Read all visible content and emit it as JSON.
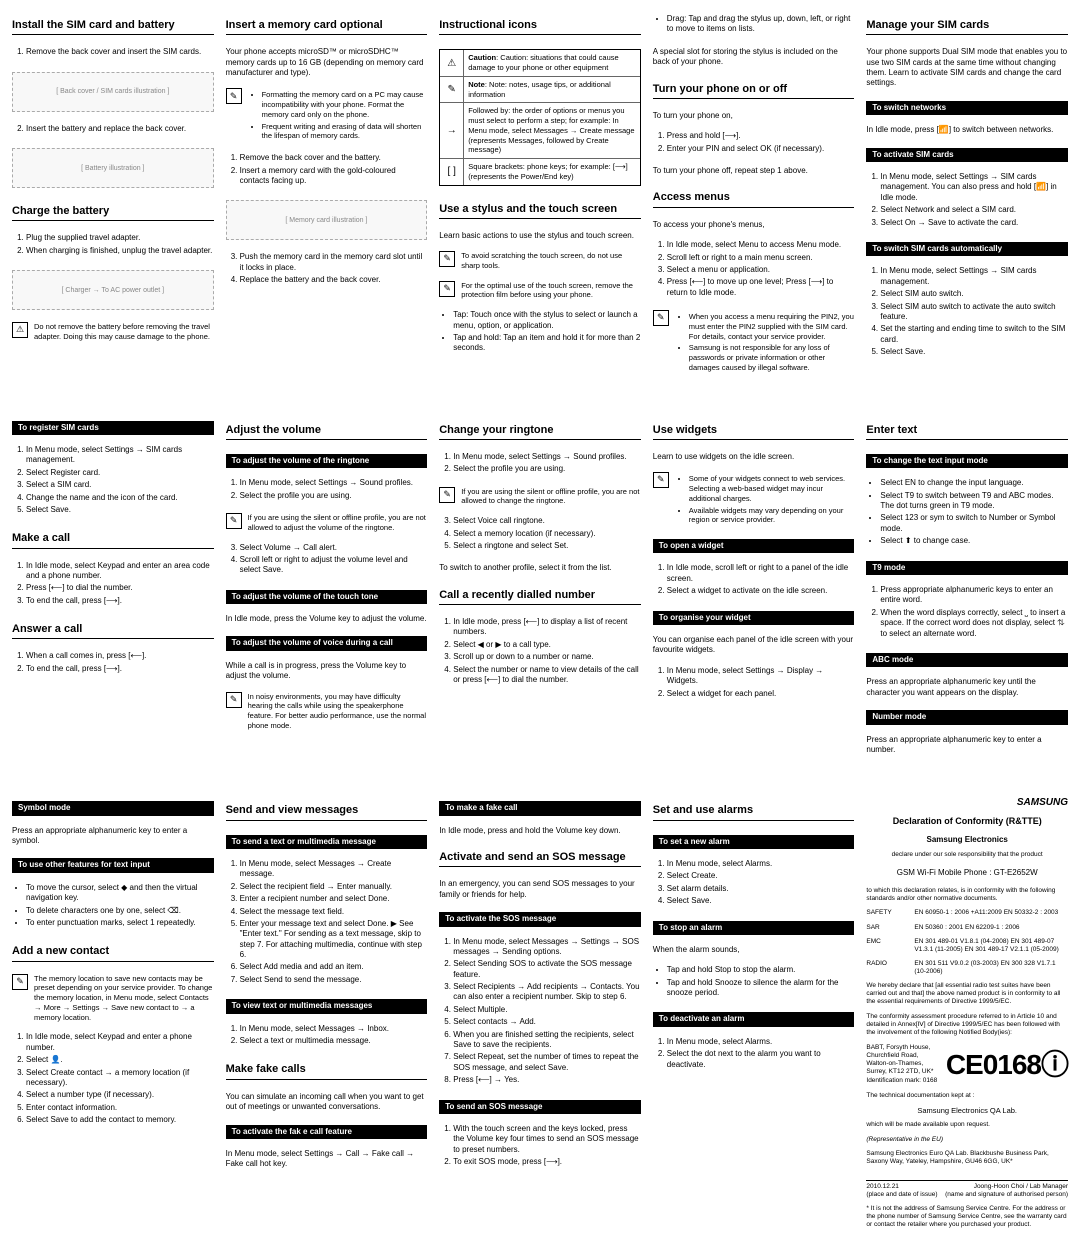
{
  "col1": {
    "install_sim": {
      "title": "Install the SIM card and battery",
      "step1": "Remove the back cover and insert the SIM cards.",
      "fig1": "[ Back cover / SIM cards illustration ]",
      "step2": "Insert the battery and replace the back cover.",
      "fig2": "[ Battery illustration ]"
    },
    "charge": {
      "title": "Charge the battery",
      "step1a": "Plug the supplied travel adapter.",
      "step1b": "When charging is finished, unplug the travel adapter.",
      "fig": "[ Charger → To AC power outlet ]",
      "warn": "Do not remove the battery before removing the travel adapter. Doing this may cause damage to the phone."
    },
    "register": {
      "label": "To register SIM cards",
      "s1": "In Menu mode, select Settings → SIM cards management.",
      "s2": "Select Register card.",
      "s3": "Select a SIM card.",
      "s4": "Change the name and the icon of the card.",
      "s5": "Select Save."
    },
    "make_call": {
      "title": "Make a call",
      "s1": "In Idle mode, select Keypad and enter an area code and a phone number.",
      "s2": "Press [⟵] to dial the number.",
      "s3": "To end the call, press [⟶]."
    },
    "answer_call": {
      "title": "Answer a call",
      "s1": "When a call comes in, press [⟵].",
      "s2": "To end the call, press [⟶]."
    },
    "symbol": {
      "label": "Symbol mode",
      "p": "Press an appropriate alphanumeric key to enter a symbol."
    },
    "other_features": {
      "label": "To use other features for text input",
      "b1": "To move the cursor, select ◆ and then the virtual navigation key.",
      "b2": "To delete characters one by one, select ⌫.",
      "b3": "To enter punctuation marks, select 1 repeatedly."
    },
    "add_contact": {
      "title": "Add a new contact",
      "note": "The memory location to save new contacts may be preset depending on your service provider. To change the memory location, in Menu mode, select Contacts → More → Settings → Save new contact to → a memory location.",
      "s1": "In Idle mode, select Keypad and enter a phone number.",
      "s2": "Select 👤.",
      "s3": "Select Create contact → a memory location (if necessary).",
      "s4": "Select a number type (if necessary).",
      "s5": "Enter contact information.",
      "s6": "Select Save to add the contact to memory."
    }
  },
  "col2": {
    "memory_card": {
      "title": "Insert a memory card optional",
      "intro": "Your phone accepts microSD™ or microSDHC™ memory cards up to 16 GB (depending on memory card manufacturer and type).",
      "b1": "Formatting the memory card on a PC may cause incompatibility with your phone. Format the memory card only on the phone.",
      "b2": "Frequent writing and erasing of data will shorten the lifespan of memory cards.",
      "s1": "Remove the back cover and the battery.",
      "s2": "Insert a memory card with the gold-coloured contacts facing up.",
      "fig": "[ Memory card illustration ]",
      "s3": "Push the memory card in the memory card slot until it locks in place.",
      "s4": "Replace the battery and the back cover."
    },
    "adjust_volume": {
      "title": "Adjust the volume",
      "label_ringtone": "To adjust the volume of the ringtone",
      "r1": "In Menu mode, select Settings → Sound profiles.",
      "r2": "Select the profile you are using.",
      "rnote": "If you are using the silent or offline profile, you are not allowed to adjust the volume of the ringtone.",
      "r3": "Select Volume → Call alert.",
      "r4": "Scroll left or right to adjust the volume level and select Save.",
      "label_touch": "To adjust the volume of the touch tone",
      "tp": "In Idle mode, press the Volume key to adjust the volume.",
      "label_voice": "To adjust the volume of voice during a call",
      "vp": "While a call is in progress, press the Volume key to adjust the volume.",
      "vnote": "In noisy environments, you may have difficulty hearing the calls while using the speakerphone feature. For better audio performance, use the normal phone mode."
    },
    "send_msg": {
      "title": "Send and view messages",
      "label_send": "To send a text or multimedia message",
      "s1": "In Menu mode, select Messages → Create message.",
      "s2": "Select the recipient field → Enter manually.",
      "s3": "Enter a recipient number and select Done.",
      "s4": "Select the message text field.",
      "s5": "Enter your message text and select Done.  ▶ See \"Enter text.\"  For sending as a text message, skip to step 7. For attaching multimedia, continue with step 6.",
      "s6": "Select Add media and add an item.",
      "s7": "Select Send to send the message.",
      "label_view": "To view text or multimedia messages",
      "v1": "In Menu mode, select Messages → Inbox.",
      "v2": "Select a text or multimedia message."
    },
    "fake_calls": {
      "title": "Make fake calls",
      "intro": "You can simulate an incoming call when you want to get out of meetings or unwanted conversations.",
      "label": "To activate the fak e call feature",
      "p": "In Menu mode, select Settings → Call → Fake call → Fake call hot key."
    }
  },
  "col3": {
    "icons": {
      "title": "Instructional icons",
      "caution": "Caution: situations that could cause damage to your phone or other equipment",
      "note": "Note: notes, usage tips, or additional information",
      "followed": "Followed by: the order of options or menus you must select to perform a step; for example: In Menu mode, select Messages → Create message (represents Messages, followed by Create message)",
      "brackets": "Square brackets: phone keys; for example: [⟶] (represents the Power/End key)"
    },
    "stylus": {
      "title": "Use a stylus and the touch screen",
      "intro": "Learn basic actions to use the stylus and touch screen.",
      "n1": "To avoid scratching the touch screen, do not use sharp tools.",
      "n2": "For the optimal use of the touch screen, remove the protection film before using your phone.",
      "b1": "Tap: Touch once with the stylus to select or launch a menu, option, or application.",
      "b2": "Tap and hold: Tap an item and hold it for more than 2 seconds."
    },
    "change_ringtone": {
      "title": "Change your ringtone",
      "s1": "In Menu mode, select Settings → Sound profiles.",
      "s2": "Select the profile you are using.",
      "note": "If you are using the silent or offline profile, you are not allowed to change the ringtone.",
      "s3": "Select Voice call ringtone.",
      "s4": "Select a memory location (if necessary).",
      "s5": "Select a ringtone and select Set.",
      "p": "To switch to another profile, select it from the list."
    },
    "recent": {
      "title": "Call a recently dialled number",
      "s1": "In Idle mode, press [⟵] to display a list of recent numbers.",
      "s2": "Select ◀ or ▶ to a call type.",
      "s3": "Scroll up or down to a number or name.",
      "s4": "Select the number or name to view details of the call or press [⟵] to dial the number."
    },
    "fake_call_make": {
      "label": "To make a fake call",
      "p": "In Idle mode, press and hold the Volume key down."
    },
    "sos": {
      "title": "Activate and send an SOS message",
      "intro": "In an emergency, you can send SOS messages to your family or friends for help.",
      "label_activate": "To activate the SOS message",
      "a1": "In Menu mode, select Messages → Settings → SOS messages → Sending options.",
      "a2": "Select Sending SOS to activate the SOS message feature.",
      "a3": "Select Recipients → Add recipients → Contacts. You can also enter a recipient number. Skip to step 6.",
      "a4": "Select Multiple.",
      "a5": "Select contacts → Add.",
      "a6": "When you are finished setting the recipients, select Save to save the recipients.",
      "a7": "Select Repeat, set the number of times to repeat the SOS message, and select Save.",
      "a8": "Press [⟵] → Yes.",
      "label_send": "To send an SOS message",
      "s1": "With the touch screen and the keys locked, press the Volume key four times to send an SOS message to preset numbers.",
      "s2": "To exit SOS mode, press [⟶]."
    }
  },
  "col4": {
    "drag": "Drag: Tap and drag the stylus up, down, left, or right to move to items on lists.",
    "slot": "A special slot for storing the stylus is included on the back of your phone.",
    "turn_on": {
      "title": "Turn your phone on or off",
      "intro": "To turn your phone on,",
      "s1": "Press and hold [⟶].",
      "s2": "Enter your PIN and select OK (if necessary).",
      "off": "To turn your phone off, repeat step 1 above."
    },
    "access": {
      "title": "Access menus",
      "intro": "To access your phone's menus,",
      "s1": "In Idle mode, select Menu to access Menu mode.",
      "s2": "Scroll left or right to a main menu screen.",
      "s3": "Select a menu or application.",
      "s4": "Press [⟵] to move up one level; Press [⟶] to return to Idle mode.",
      "n1": "When you access a menu requiring the PIN2, you must enter the PIN2 supplied with the SIM card. For details, contact your service provider.",
      "n2": "Samsung is not responsible for any loss of passwords or private information or other damages caused by illegal software."
    },
    "widgets": {
      "title": "Use widgets",
      "intro": "Learn to use widgets on the idle screen.",
      "n1": "Some of your widgets connect to web services. Selecting a web-based widget may incur additional charges.",
      "n2": "Available widgets may vary depending on your region or service provider.",
      "label_open": "To open a widget",
      "o1": "In Idle mode, scroll left or right to a panel of the idle screen.",
      "o2": "Select a widget to activate on the idle screen.",
      "label_org": "To organise your widget",
      "orgp": "You can organise each panel of the idle screen with your favourite widgets.",
      "g1": "In Menu mode, select Settings → Display → Widgets.",
      "g2": "Select a widget for each panel."
    },
    "alarms": {
      "title": "Set and use alarms",
      "label_set": "To set a new alarm",
      "s1": "In Menu mode, select Alarms.",
      "s2": "Select Create.",
      "s3": "Set alarm details.",
      "s4": "Select Save.",
      "label_stop": "To stop an alarm",
      "stop_intro": "When the alarm sounds,",
      "t1": "Tap and hold Stop to stop the alarm.",
      "t2": "Tap and hold Snooze to silence the alarm for the snooze period.",
      "label_deact": "To deactivate an alarm",
      "d1": "In Menu mode, select Alarms.",
      "d2": "Select the dot next to the alarm you want to deactivate."
    }
  },
  "col5": {
    "manage_sim": {
      "title": "Manage your SIM cards",
      "intro": "Your phone supports Dual SIM mode that enables you to use two SIM cards at the same time without changing them. Learn to activate SIM cards and change the card settings.",
      "label_switch": "To switch networks",
      "swp": "In Idle mode, press [📶] to switch between networks.",
      "label_activate": "To activate SIM cards",
      "a1": "In Menu mode, select Settings → SIM cards management.  You can also press and hold [📶] in Idle mode.",
      "a2": "Select Network and select a SIM card.",
      "a3": "Select On → Save to activate the card.",
      "label_auto": "To switch SIM cards automatically",
      "u1": "In Menu mode, select Settings → SIM cards management.",
      "u2": "Select SIM auto switch.",
      "u3": "Select SIM auto switch to activate the auto switch feature.",
      "u4": "Set the starting and ending time to switch to the SIM card.",
      "u5": "Select Save."
    },
    "enter_text": {
      "title": "Enter text",
      "label_change": "To change the text input mode",
      "c1": "Select EN to change the input language.",
      "c2": "Select T9 to switch between T9 and ABC modes. The dot turns green in T9 mode.",
      "c3": "Select 123 or sym to switch to Number or Symbol mode.",
      "c4": "Select ⬆ to change case.",
      "label_t9": "T9 mode",
      "t1": "Press appropriate alphanumeric keys to enter an entire word.",
      "t2": "When the word displays correctly, select ⎵ to insert a space. If the correct word does not display, select ⇅ to select an alternate word.",
      "label_abc": "ABC mode",
      "abcp": "Press an appropriate alphanumeric key until the character you want appears on the display.",
      "label_num": "Number mode",
      "nump": "Press an appropriate alphanumeric key to enter a number."
    },
    "conformity": {
      "brand": "SAMSUNG ELECTRONICS",
      "title": "Declaration of Conformity (R&TTE)",
      "sub": "Samsung Electronics",
      "declare": "declare under our sole responsibility that the product",
      "model": "GSM Wi-Fi Mobile Phone : GT-E2652W",
      "compliance": "to which this declaration relates, is in conformity with the following standards and/or other normative documents.",
      "safety_k": "SAFETY",
      "safety_v": "EN 60950-1 : 2006 +A11:2009  EN 50332-2 : 2003",
      "sar_k": "SAR",
      "sar_v": "EN 50360 : 2001  EN 62209-1 : 2006",
      "emc_k": "EMC",
      "emc_v": "EN 301 489-01 V1.8.1 (04-2008)  EN 301 489-07 V1.3.1 (11-2005)  EN 301 489-17 V2.1.1 (05-2009)",
      "radio_k": "RADIO",
      "radio_v": "EN 301 511 V9.0.2 (03-2003)  EN 300 328 V1.7.1 (10-2006)",
      "hereby": "We hereby declare that [all essential radio test suites have been carried out and that] the above named product is in conformity to all the essential requirements of Directive 1999/5/EC.",
      "procedure": "The conformity assessment procedure referred to in Article 10 and detailed in Annex[Ⅳ] of Directive 1999/5/EC has been followed with the involvement of the following Notified Body(ies):",
      "babt": "BABT, Forsyth House, Churchfield Road, Walton-on-Thames, Surrey, KT12 2TD, UK*  Identification mark: 0168",
      "ce": "CE0168ⓘ",
      "tech_doc": "The technical documentation kept at :",
      "qalab": "Samsung Electronics QA Lab.",
      "avail": "which will be made available upon request.",
      "rep": "(Representative in the EU)",
      "addr": "Samsung Electronics Euro QA Lab. Blackbushe Business Park, Saxony Way, Yateley, Hampshire, GU46 6GG, UK*",
      "date": "2010.12.21",
      "signer": "Joong-Hoon Choi / Lab Manager",
      "datenote": "(place and date of issue)",
      "signnote": "(name and signature of authorised person)",
      "footer": "* It is not the address of Samsung Service Centre. For the address or the phone number of Samsung Service Centre, see the warranty card or contact the retailer where you purchased your product."
    }
  }
}
